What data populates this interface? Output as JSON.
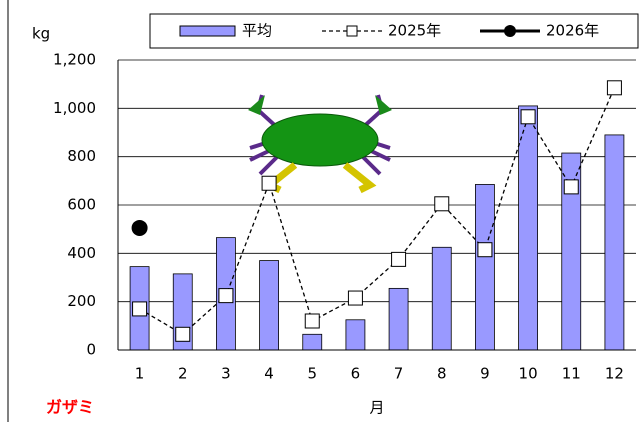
{
  "chart_data": {
    "type": "bar-line",
    "y_label": "kg",
    "x_label": "月",
    "annotation": "ガザミ",
    "categories": [
      "1",
      "2",
      "3",
      "4",
      "5",
      "6",
      "7",
      "8",
      "9",
      "10",
      "11",
      "12"
    ],
    "series": [
      {
        "name": "平均",
        "type": "bar",
        "color": "#9999ff",
        "values": [
          345,
          315,
          465,
          370,
          65,
          125,
          255,
          425,
          685,
          1010,
          815,
          890
        ]
      },
      {
        "name": "2025年",
        "type": "line",
        "color": "#000000",
        "dashed": true,
        "marker": "square",
        "values": [
          170,
          65,
          225,
          690,
          120,
          215,
          375,
          605,
          415,
          965,
          675,
          1085
        ]
      },
      {
        "name": "2026年",
        "type": "line",
        "color": "#000000",
        "dashed": false,
        "marker": "circle",
        "values": [
          505,
          null,
          null,
          null,
          null,
          null,
          null,
          null,
          null,
          null,
          null,
          null
        ]
      }
    ],
    "ylim": [
      0,
      1200
    ],
    "yticks": [
      0,
      200,
      400,
      600,
      800,
      {
        "value": 1000,
        "label": "1,000"
      },
      {
        "value": 1200,
        "label": "1,200"
      }
    ],
    "grid": true,
    "legend": "top"
  }
}
